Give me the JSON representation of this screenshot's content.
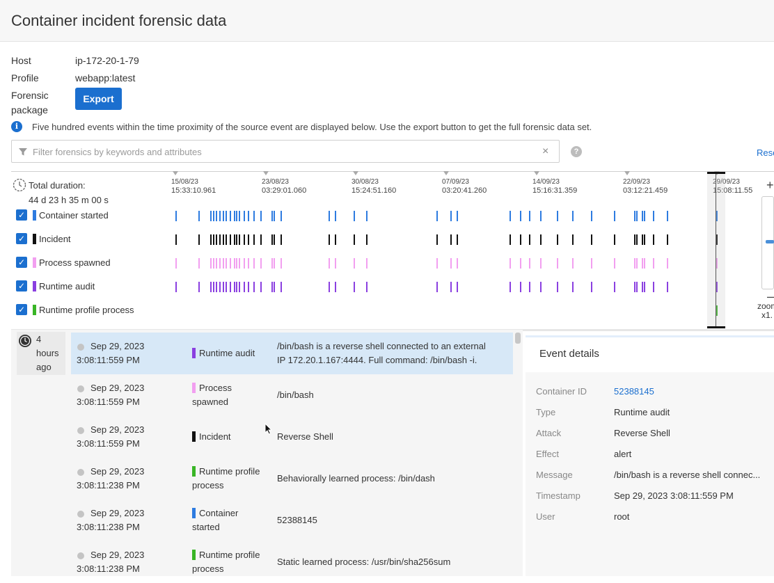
{
  "page": {
    "title": "Container incident forensic data"
  },
  "meta": {
    "host_label": "Host",
    "host_value": "ip-172-20-1-79",
    "profile_label": "Profile",
    "profile_value": "webapp:latest",
    "package_label_1": "Forensic",
    "package_label_2": "package",
    "export_label": "Export"
  },
  "info": {
    "text": "Five hundred events within the time proximity of the source event are displayed below. Use the export button to get the full forensic data set."
  },
  "filter": {
    "placeholder": "Filter forensics by keywords and attributes",
    "clear": "×",
    "help": "?",
    "reset_label": "Rese"
  },
  "timeline": {
    "total_label": "Total duration:",
    "total_value": "44 d 23 h 35 m 00 s",
    "ticks": [
      {
        "date": "15/08/23",
        "time": "15:33:10.961"
      },
      {
        "date": "23/08/23",
        "time": "03:29:01.060"
      },
      {
        "date": "30/08/23",
        "time": "15:24:51.160"
      },
      {
        "date": "07/09/23",
        "time": "03:20:41.260"
      },
      {
        "date": "14/09/23",
        "time": "15:16:31.359"
      },
      {
        "date": "22/09/23",
        "time": "03:12:21.459"
      },
      {
        "date": "29/09/23",
        "time": "15:08:11.55"
      }
    ],
    "legend": [
      {
        "label": "Container started",
        "color": "#2d7be0"
      },
      {
        "label": "Incident",
        "color": "#111111"
      },
      {
        "label": "Process spawned",
        "color": "#f29ff0"
      },
      {
        "label": "Runtime audit",
        "color": "#8a3fe0"
      },
      {
        "label": "Runtime profile process",
        "color": "#39b526"
      }
    ],
    "zoom_label": "zoom",
    "zoom_value": "x1."
  },
  "list": {
    "ago": [
      "4",
      "hours",
      "ago"
    ],
    "events": [
      {
        "date": "Sep 29, 2023",
        "time": "3:08:11:559 PM",
        "type1": "Runtime audit",
        "type2": "",
        "color": "#8a3fe0",
        "desc1": "/bin/bash is a reverse shell connected to an external",
        "desc2": "IP 172.20.1.167:4444. Full command: /bin/bash -i."
      },
      {
        "date": "Sep 29, 2023",
        "time": "3:08:11:559 PM",
        "type1": "Process",
        "type2": "spawned",
        "color": "#f29ff0",
        "desc1": "/bin/bash",
        "desc2": ""
      },
      {
        "date": "Sep 29, 2023",
        "time": "3:08:11:559 PM",
        "type1": "Incident",
        "type2": "",
        "color": "#111111",
        "desc1": "Reverse Shell",
        "desc2": ""
      },
      {
        "date": "Sep 29, 2023",
        "time": "3:08:11:238 PM",
        "type1": "Runtime profile",
        "type2": "process",
        "color": "#39b526",
        "desc1": "Behaviorally learned process: /bin/dash",
        "desc2": ""
      },
      {
        "date": "Sep 29, 2023",
        "time": "3:08:11:238 PM",
        "type1": "Container",
        "type2": "started",
        "color": "#2d7be0",
        "desc1": "52388145",
        "desc2": ""
      },
      {
        "date": "Sep 29, 2023",
        "time": "3:08:11:238 PM",
        "type1": "Runtime profile",
        "type2": "process",
        "color": "#39b526",
        "desc1": "Static learned process: /usr/bin/sha256sum",
        "desc2": ""
      }
    ]
  },
  "details": {
    "title": "Event details",
    "rows": [
      {
        "key": "Container ID",
        "value": "52388145"
      },
      {
        "key": "Type",
        "value": "Runtime audit"
      },
      {
        "key": "Attack",
        "value": "Reverse Shell"
      },
      {
        "key": "Effect",
        "value": "alert"
      },
      {
        "key": "Message",
        "value": "/bin/bash is a reverse shell connec..."
      },
      {
        "key": "Timestamp",
        "value": "Sep 29, 2023 3:08:11:559 PM"
      },
      {
        "key": "User",
        "value": "root"
      }
    ]
  }
}
